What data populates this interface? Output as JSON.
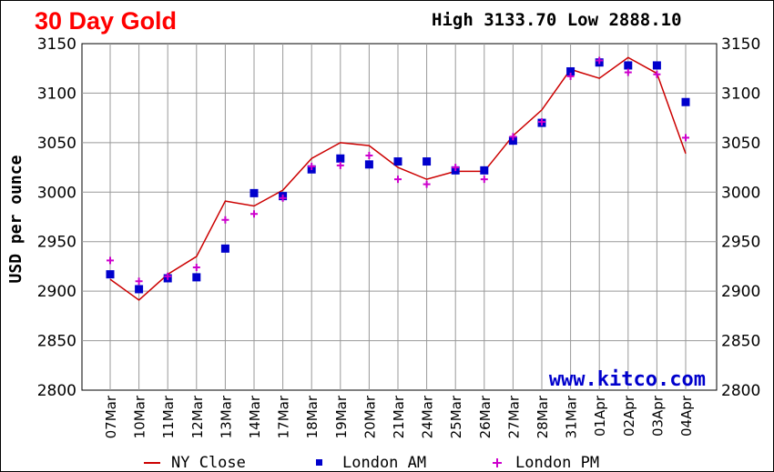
{
  "header": {
    "title": "30 Day Gold",
    "high_low": "High 3133.70 Low 2888.10"
  },
  "watermark": "www.kitco.com",
  "colors": {
    "ny_close": "#cc0000",
    "london_am": "#0000cc",
    "london_pm": "#cc00cc",
    "grid": "#999999",
    "title": "#ff0000"
  },
  "chart_data": {
    "type": "line",
    "title": "30 Day Gold",
    "ylabel": "USD per ounce",
    "xlabel": "",
    "ylim": [
      2800,
      3150
    ],
    "y_ticks": [
      3150,
      3100,
      3050,
      3000,
      2950,
      2900,
      2850,
      2800
    ],
    "y_ticks_both_sides": true,
    "grid": true,
    "legend_position": "bottom",
    "categories": [
      "07Mar",
      "10Mar",
      "11Mar",
      "12Mar",
      "13Mar",
      "14Mar",
      "17Mar",
      "18Mar",
      "19Mar",
      "20Mar",
      "21Mar",
      "24Mar",
      "25Mar",
      "26Mar",
      "27Mar",
      "28Mar",
      "31Mar",
      "01Apr",
      "02Apr",
      "03Apr",
      "04Apr"
    ],
    "series": [
      {
        "name": "NY Close",
        "style": "line",
        "values": [
          2912,
          2891,
          2917,
          2935,
          2991,
          2986,
          3002,
          3034,
          3050,
          3047,
          3025,
          3013,
          3021,
          3021,
          3057,
          3083,
          3124,
          3115,
          3136,
          3120,
          3039
        ]
      },
      {
        "name": "London AM",
        "style": "square",
        "values": [
          2917,
          2902,
          2913,
          2914,
          2943,
          2999,
          2996,
          3023,
          3034,
          3028,
          3031,
          3031,
          3022,
          3022,
          3052,
          3070,
          3122,
          3131,
          3128,
          3128,
          3091
        ]
      },
      {
        "name": "London PM",
        "style": "plus",
        "values": [
          2931,
          2910,
          2915,
          2924,
          2972,
          2978,
          2994,
          3026,
          3027,
          3037,
          3013,
          3008,
          3025,
          3013,
          3056,
          3071,
          3117,
          3133,
          3121,
          3119,
          3055
        ]
      }
    ]
  }
}
